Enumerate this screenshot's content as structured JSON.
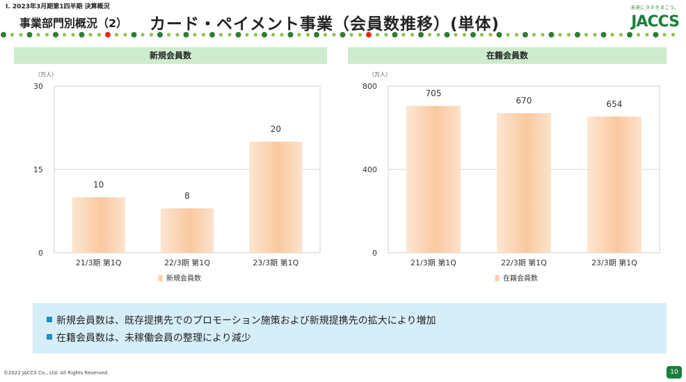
{
  "header": {
    "breadcrumb": "I. 2023年3月期第1四半期 決算概況",
    "section_title": "事業部門別概況（2）",
    "page_title": "カード・ペイメント事業（会員数推移）(単体)"
  },
  "logo": {
    "tagline": "未来にタネをまこう。",
    "text": "JACCS"
  },
  "colors": {
    "accent_green": "#1a7f3a",
    "panel_header": "#cdeccd",
    "note_bg": "#d6eef8",
    "bar_fill": "#f9c9a0",
    "dot_red": "#e02a1c"
  },
  "chart_data": [
    {
      "type": "bar",
      "title": "新規会員数",
      "unit_label": "（万人）",
      "categories": [
        "21/3期 第1Q",
        "22/3期 第1Q",
        "23/3期 第1Q"
      ],
      "series": [
        {
          "name": "新規会員数",
          "values": [
            10,
            8,
            20
          ]
        }
      ],
      "ylim": [
        0,
        30
      ],
      "yticks": [
        0,
        15,
        30
      ],
      "grid": true,
      "legend": "bottom"
    },
    {
      "type": "bar",
      "title": "在籍会員数",
      "unit_label": "（万人）",
      "categories": [
        "21/3期 第1Q",
        "22/3期 第1Q",
        "23/3期 第1Q"
      ],
      "series": [
        {
          "name": "在籍会員数",
          "values": [
            705,
            670,
            654
          ]
        }
      ],
      "ylim": [
        0,
        800
      ],
      "yticks": [
        0,
        400,
        800
      ],
      "grid": true,
      "legend": "bottom"
    }
  ],
  "notes": [
    "新規会員数は、既存提携先でのプロモーション施策および新規提携先の拡大により増加",
    "在籍会員数は、未稼働会員の整理により減少"
  ],
  "footer": {
    "copyright": "©2022 JACCS Co., Ltd. All Rights Reserved.",
    "page_number": "10"
  }
}
